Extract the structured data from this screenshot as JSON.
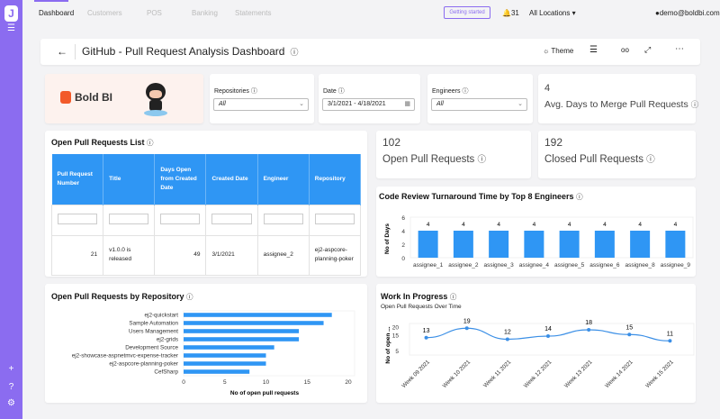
{
  "app": {
    "logo_letter": "J"
  },
  "nav": {
    "items": [
      "Dashboard",
      "Customers",
      "POS",
      "Banking",
      "Statements"
    ],
    "getting_started": "Getting started",
    "notifications": "31",
    "location": "All Locations",
    "user": "demo@boldbi.com"
  },
  "header": {
    "title": "GitHub - Pull Request Analysis Dashboard",
    "theme": "Theme"
  },
  "brand": {
    "name": "Bold BI"
  },
  "filters": [
    {
      "label": "Repositories",
      "value": "All"
    },
    {
      "label": "Date",
      "value": "3/1/2021 - 4/18/2021"
    },
    {
      "label": "Engineers",
      "value": "All"
    }
  ],
  "kpis": {
    "avg_days": {
      "value": "4",
      "label": "Avg. Days to Merge Pull Requests"
    },
    "open": {
      "value": "102",
      "label": "Open Pull Requests"
    },
    "closed": {
      "value": "192",
      "label": "Closed Pull Requests"
    }
  },
  "pr_list": {
    "title": "Open Pull Requests List",
    "columns": [
      "Pull Request Number",
      "Title",
      "Days Open from Created Date",
      "Created Date",
      "Engineer",
      "Repository"
    ],
    "rows": [
      [
        "21",
        "v1.0.0 is released",
        "49",
        "3/1/2021",
        "assignee_2",
        "ej2-aspcore-planning-poker"
      ]
    ]
  },
  "chart_data": [
    {
      "type": "bar",
      "title": "Code Review Turnaround Time by Top 8 Engineers",
      "ylabel": "No of Days",
      "categories": [
        "assignee_1",
        "assignee_2",
        "assignee_3",
        "assignee_4",
        "assignee_5",
        "assignee_6",
        "assignee_8",
        "assignee_9"
      ],
      "values": [
        4,
        4,
        4,
        4,
        4,
        4,
        4,
        4
      ],
      "ylim": [
        0,
        6
      ],
      "yticks": [
        0,
        2,
        4,
        6
      ],
      "color": "#2f96f4"
    },
    {
      "type": "bar",
      "orientation": "horizontal",
      "title": "Open Pull Requests by Repository",
      "xlabel": "No of open pull requests",
      "categories": [
        "ej2-quickstart",
        "Sample Automation",
        "Users Management",
        "ej2-grids",
        "Development Source",
        "ej2-showcase-aspnetmvc-expense-tracker",
        "ej2-aspcore-planning-poker",
        "CefSharp"
      ],
      "values": [
        18,
        17,
        14,
        14,
        11,
        10,
        10,
        8
      ],
      "xlim": [
        0,
        20
      ],
      "xticks": [
        0,
        5,
        10,
        15,
        20
      ],
      "color": "#2f96f4"
    },
    {
      "type": "line",
      "title": "Work In Progress",
      "subtitle": "Open Pull Requests Over Time",
      "ylabel": "No of open ...",
      "categories": [
        "Week 09 2021",
        "Week 10 2021",
        "Week 11 2021",
        "Week 12 2021",
        "Week 13 2021",
        "Week 14 2021",
        "Week 15 2021"
      ],
      "values": [
        13,
        19,
        12,
        14,
        18,
        15,
        11
      ],
      "yticks": [
        5,
        15,
        20
      ],
      "color": "#3b8fe6"
    }
  ]
}
